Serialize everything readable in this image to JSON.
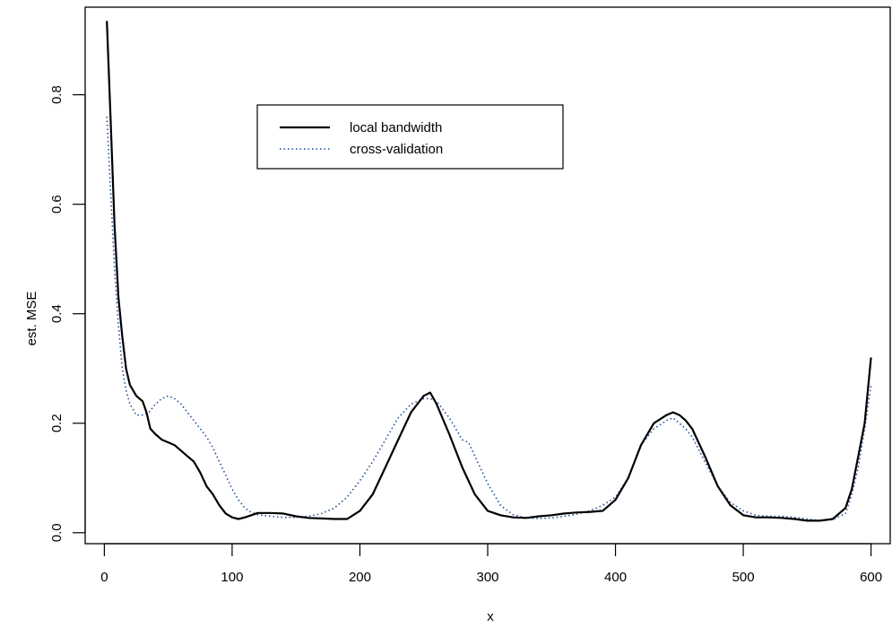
{
  "chart_data": {
    "type": "line",
    "xlabel": "x",
    "ylabel": "est. MSE",
    "xlim": [
      -15,
      615
    ],
    "ylim": [
      -0.02,
      0.96
    ],
    "x_ticks": [
      "0",
      "100",
      "200",
      "300",
      "400",
      "500",
      "600"
    ],
    "y_ticks": [
      "0.0",
      "0.2",
      "0.4",
      "0.6",
      "0.8"
    ],
    "legend": {
      "position": "top-center",
      "entries": [
        "local bandwidth",
        "cross-validation"
      ]
    },
    "series": [
      {
        "name": "local bandwidth",
        "style": "solid",
        "color": "#000000",
        "x": [
          2,
          5,
          8,
          11,
          14,
          17,
          20,
          25,
          30,
          33,
          36,
          40,
          45,
          50,
          55,
          60,
          65,
          70,
          75,
          80,
          85,
          90,
          95,
          100,
          105,
          110,
          115,
          120,
          130,
          140,
          150,
          160,
          170,
          180,
          190,
          200,
          210,
          220,
          230,
          240,
          250,
          255,
          260,
          270,
          280,
          290,
          300,
          310,
          320,
          330,
          340,
          350,
          360,
          370,
          380,
          390,
          400,
          410,
          420,
          430,
          440,
          445,
          450,
          455,
          460,
          470,
          480,
          490,
          500,
          510,
          520,
          530,
          540,
          550,
          560,
          570,
          580,
          585,
          590,
          595,
          600
        ],
        "y": [
          0.935,
          0.75,
          0.56,
          0.43,
          0.36,
          0.3,
          0.27,
          0.25,
          0.24,
          0.22,
          0.19,
          0.18,
          0.17,
          0.165,
          0.16,
          0.15,
          0.14,
          0.13,
          0.11,
          0.085,
          0.07,
          0.05,
          0.035,
          0.028,
          0.025,
          0.028,
          0.032,
          0.036,
          0.036,
          0.035,
          0.03,
          0.027,
          0.026,
          0.025,
          0.025,
          0.04,
          0.07,
          0.12,
          0.17,
          0.22,
          0.25,
          0.256,
          0.235,
          0.18,
          0.12,
          0.07,
          0.04,
          0.032,
          0.028,
          0.027,
          0.03,
          0.032,
          0.035,
          0.037,
          0.038,
          0.04,
          0.06,
          0.1,
          0.16,
          0.2,
          0.215,
          0.22,
          0.215,
          0.205,
          0.19,
          0.14,
          0.085,
          0.05,
          0.032,
          0.028,
          0.028,
          0.027,
          0.025,
          0.022,
          0.022,
          0.025,
          0.045,
          0.08,
          0.14,
          0.2,
          0.32
        ]
      },
      {
        "name": "cross-validation",
        "style": "dotted",
        "color": "#1f4e9a",
        "x": [
          2,
          5,
          8,
          11,
          14,
          17,
          20,
          25,
          30,
          35,
          40,
          45,
          50,
          55,
          60,
          65,
          70,
          75,
          80,
          85,
          90,
          95,
          100,
          105,
          110,
          115,
          120,
          130,
          140,
          150,
          160,
          170,
          180,
          190,
          200,
          210,
          220,
          230,
          240,
          250,
          255,
          260,
          270,
          280,
          285,
          290,
          300,
          310,
          320,
          330,
          340,
          350,
          360,
          370,
          380,
          390,
          400,
          410,
          420,
          430,
          440,
          445,
          450,
          455,
          460,
          470,
          480,
          490,
          500,
          510,
          520,
          530,
          540,
          550,
          560,
          570,
          580,
          585,
          590,
          595,
          600
        ],
        "y": [
          0.76,
          0.62,
          0.48,
          0.38,
          0.3,
          0.26,
          0.235,
          0.215,
          0.215,
          0.22,
          0.235,
          0.245,
          0.25,
          0.245,
          0.235,
          0.22,
          0.205,
          0.19,
          0.175,
          0.155,
          0.13,
          0.105,
          0.08,
          0.06,
          0.045,
          0.037,
          0.033,
          0.03,
          0.028,
          0.028,
          0.03,
          0.035,
          0.045,
          0.065,
          0.095,
          0.13,
          0.17,
          0.21,
          0.235,
          0.245,
          0.245,
          0.24,
          0.21,
          0.17,
          0.165,
          0.14,
          0.09,
          0.05,
          0.033,
          0.027,
          0.026,
          0.027,
          0.03,
          0.034,
          0.04,
          0.05,
          0.065,
          0.1,
          0.16,
          0.19,
          0.205,
          0.21,
          0.2,
          0.19,
          0.175,
          0.13,
          0.085,
          0.055,
          0.04,
          0.032,
          0.03,
          0.03,
          0.028,
          0.025,
          0.022,
          0.024,
          0.035,
          0.07,
          0.12,
          0.19,
          0.27
        ]
      }
    ]
  }
}
